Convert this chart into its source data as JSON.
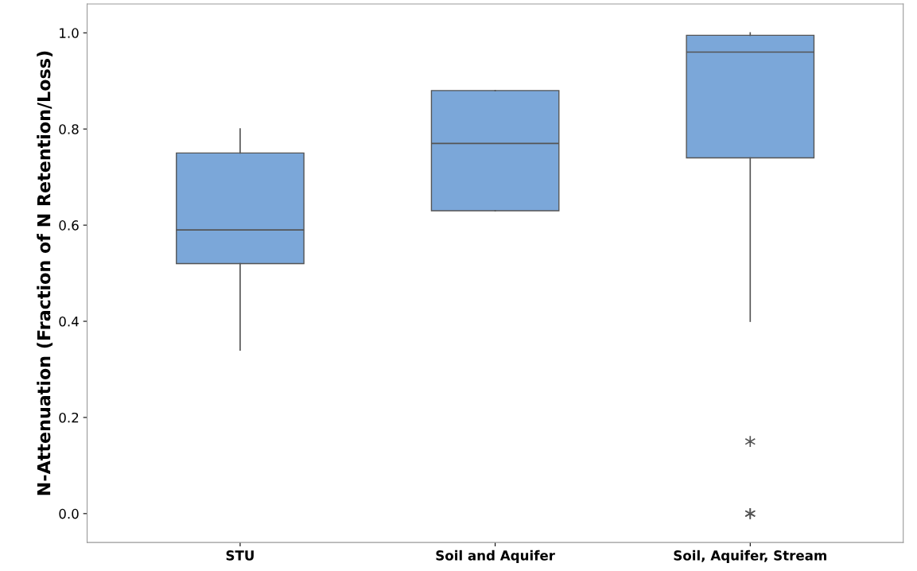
{
  "chart_data": {
    "type": "box",
    "ylabel": "N-Attenuation (Fraction of N Retention/Loss)",
    "categories": [
      "STU",
      "Soil and Aquifer",
      "Soil, Aquifer, Stream"
    ],
    "boxes": [
      {
        "low": 0.34,
        "q1": 0.52,
        "median": 0.59,
        "q3": 0.75,
        "high": 0.8
      },
      {
        "low": 0.63,
        "q1": 0.63,
        "median": 0.77,
        "q3": 0.88,
        "high": 0.88
      },
      {
        "low": 0.4,
        "q1": 0.74,
        "median": 0.96,
        "q3": 0.995,
        "high": 1.0,
        "outliers": [
          0.15,
          0.0,
          0.0
        ]
      }
    ],
    "color": "#7ba7d9",
    "ylim": [
      -0.06,
      1.06
    ],
    "yticks": [
      {
        "value": 0.0,
        "label": "0.0"
      },
      {
        "value": 0.2,
        "label": "0.2"
      },
      {
        "value": 0.4,
        "label": "0.4"
      },
      {
        "value": 0.6,
        "label": "0.6"
      },
      {
        "value": 0.8,
        "label": "0.8"
      },
      {
        "value": 1.0,
        "label": "1.0"
      }
    ],
    "grid": false,
    "legend": false,
    "marker": "star"
  }
}
